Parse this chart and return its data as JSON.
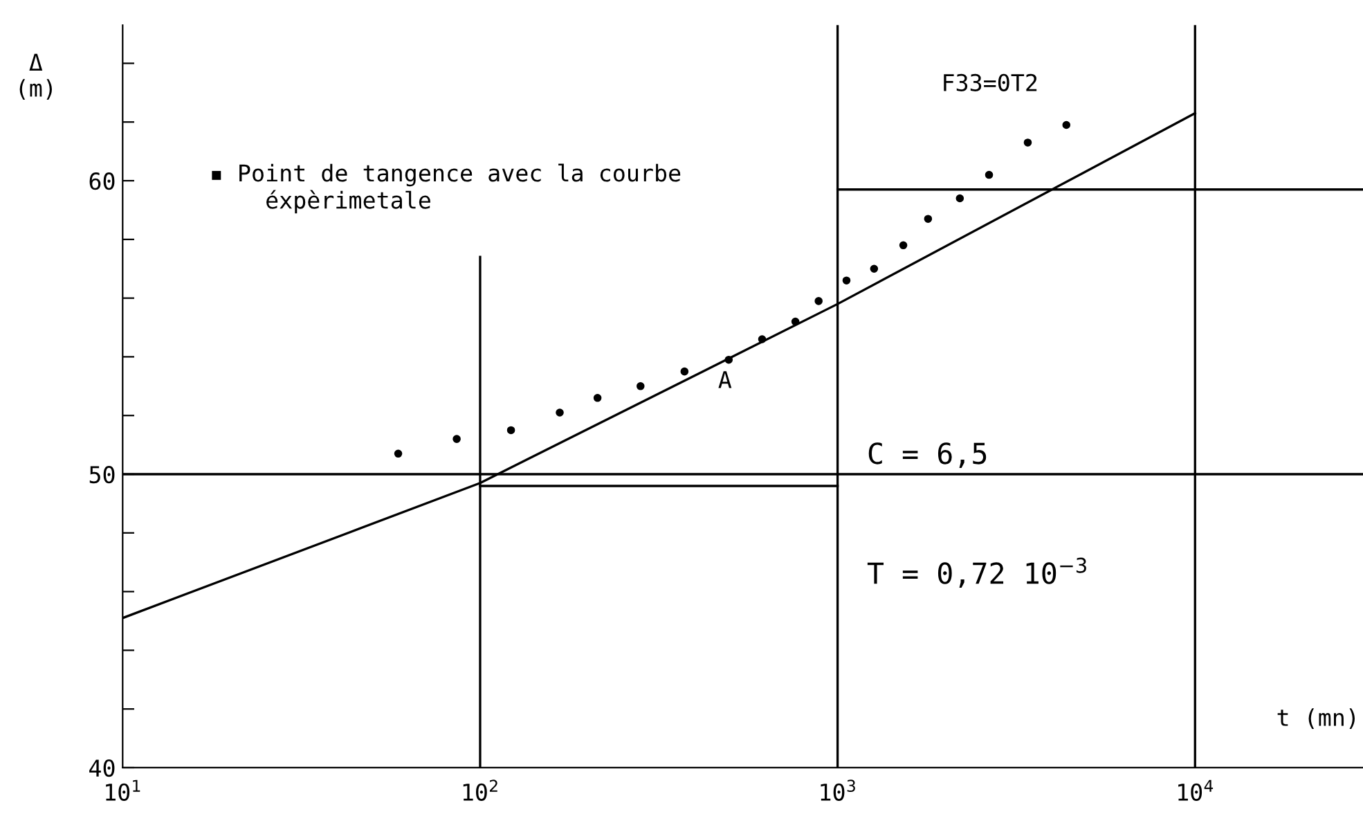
{
  "chart_data": {
    "type": "scatter",
    "ylabel": "Δ\n(m)",
    "xlabel": "t (mn)",
    "log": "x",
    "grid": false,
    "legend": false,
    "xlim": [
      10,
      29500
    ],
    "xticks": [
      {
        "value": 10,
        "label": "10$^{1}$"
      },
      {
        "value": 100,
        "label": "10$^{2}$"
      },
      {
        "value": 1000,
        "label": "10$^{3}$"
      },
      {
        "value": 10000,
        "label": "10$^{4}$"
      }
    ],
    "ylim": [
      40,
      65.3
    ],
    "yticks": [
      40,
      {
        "value": 42,
        "label": null
      },
      {
        "value": 44,
        "label": null
      },
      {
        "value": 46,
        "label": null
      },
      {
        "value": 48,
        "label": null
      },
      50,
      {
        "value": 52,
        "label": null
      },
      {
        "value": 54,
        "label": null
      },
      {
        "value": 56,
        "label": null
      },
      {
        "value": 58,
        "label": null
      },
      60,
      {
        "value": 62,
        "label": null
      },
      {
        "value": 64,
        "label": null
      }
    ],
    "series": [
      {
        "marker": "circle",
        "color": "#000000",
        "x": [
          59,
          86,
          122,
          167,
          213,
          281,
          373,
          496,
          615,
          762,
          885,
          1059,
          1265,
          1527,
          1791,
          2198,
          2653,
          3404,
          4365
        ],
        "values": [
          50.7,
          51.2,
          51.5,
          52.1,
          52.6,
          53.0,
          53.5,
          53.9,
          54.6,
          55.2,
          55.9,
          56.6,
          57.0,
          57.8,
          58.7,
          59.4,
          60.2,
          61.3,
          61.9
        ]
      },
      {
        "type": "line",
        "marker": "none",
        "color": "#000000",
        "x": [
          10,
          100,
          1000,
          10000
        ],
        "values": [
          45.1,
          49.7,
          55.8,
          62.3
        ]
      },
      {
        "type": "line",
        "marker": "none",
        "color": "#000000",
        "x": [
          100,
          100
        ],
        "values": [
          40,
          57.4
        ]
      },
      {
        "type": "line",
        "marker": "none",
        "color": "#000000",
        "x": [
          1000,
          29500
        ],
        "values": [
          59.7,
          59.7
        ]
      },
      {
        "type": "line",
        "marker": "none",
        "color": "#000000",
        "x": [
          100,
          1000
        ],
        "values": [
          49.6,
          49.6
        ]
      }
    ],
    "ref_lines": [
      {
        "axis": "x",
        "value": 1000,
        "color": "#000000"
      },
      {
        "axis": "x",
        "value": 10000,
        "color": "#000000"
      },
      {
        "axis": "y",
        "value": 50,
        "color": "#000000"
      }
    ],
    "annotations": [
      "▪ Point de tangence avec la courbe\n    éxpèrimetale",
      "F33=0T2",
      "A",
      "C = 6,5",
      "T = 0,72 10$^{−3}$"
    ]
  }
}
